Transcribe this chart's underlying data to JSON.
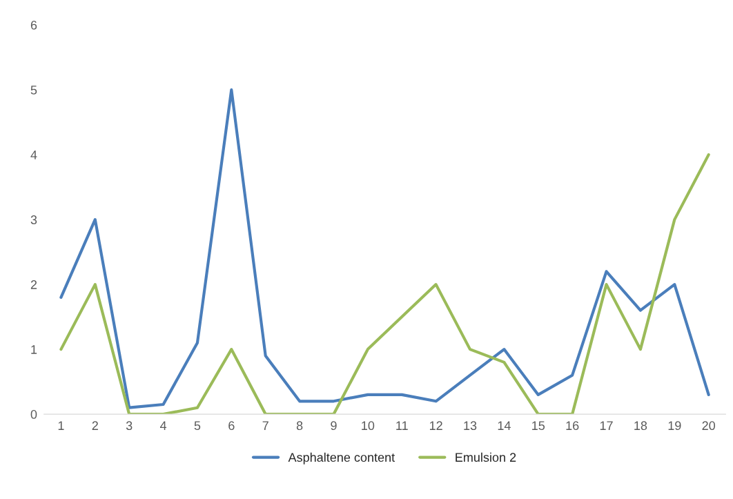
{
  "chart_data": {
    "type": "line",
    "categories": [
      "1",
      "2",
      "3",
      "4",
      "5",
      "6",
      "7",
      "8",
      "9",
      "10",
      "11",
      "12",
      "13",
      "14",
      "15",
      "16",
      "17",
      "18",
      "19",
      "20"
    ],
    "series": [
      {
        "name": "Asphaltene content",
        "color": "#4a7ebb",
        "values": [
          1.8,
          3,
          0.1,
          0.15,
          1.1,
          5,
          0.9,
          0.2,
          0.2,
          0.3,
          0.3,
          0.2,
          0.6,
          1.0,
          0.3,
          0.6,
          2.2,
          1.6,
          2.0,
          0.3
        ]
      },
      {
        "name": "Emulsion 2",
        "color": "#9bbb59",
        "values": [
          1,
          2,
          0,
          0,
          0.1,
          1,
          0,
          0,
          0,
          1,
          1.5,
          2,
          1,
          0.8,
          0,
          0,
          2,
          1,
          3,
          4
        ]
      }
    ],
    "ylim": [
      0,
      6
    ],
    "yticks": [
      0,
      1,
      2,
      3,
      4,
      5,
      6
    ],
    "grid": false,
    "legend": "bottom",
    "line_style": "solid",
    "marker": "none"
  }
}
